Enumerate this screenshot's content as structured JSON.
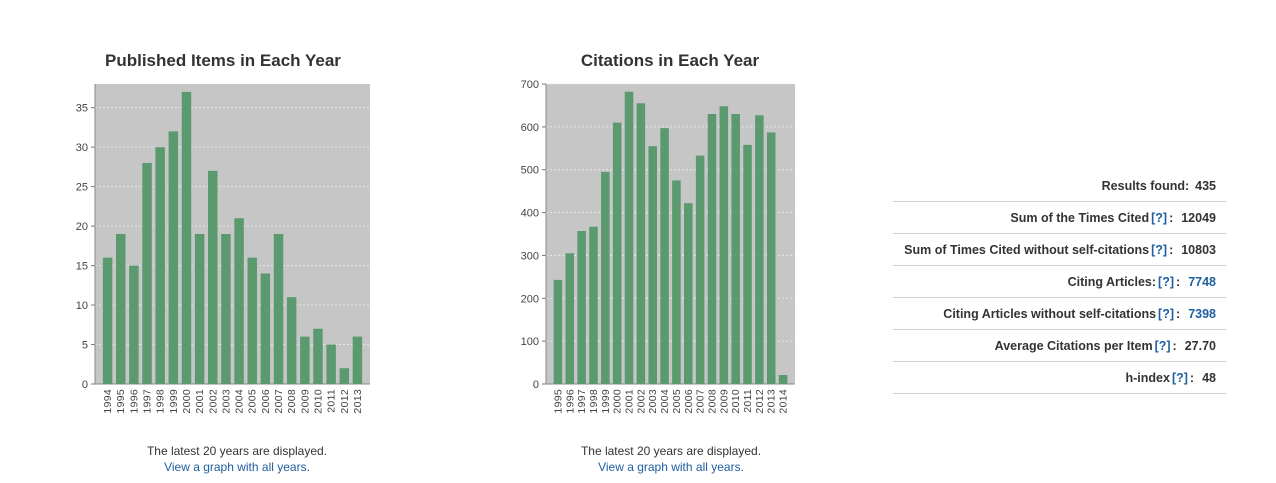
{
  "charts": {
    "published": {
      "title": "Published Items in Each Year",
      "note": "The latest 20 years are displayed.",
      "link": "View a graph with all years."
    },
    "citations": {
      "title": "Citations in Each Year",
      "note": "The latest 20 years are displayed.",
      "link": "View a graph with all years."
    }
  },
  "stats": {
    "results": {
      "label": "Results found:",
      "value": "435"
    },
    "sum_cited": {
      "label": "Sum of the Times Cited",
      "help": "[?]",
      "value": "12049"
    },
    "sum_cited_no_self": {
      "label": "Sum of Times Cited without self-citations",
      "help": "[?]",
      "value": "10803"
    },
    "citing": {
      "label": "Citing Articles:",
      "help": "[?]",
      "value": "7748"
    },
    "citing_no_self": {
      "label": "Citing Articles without self-citations",
      "help": "[?]",
      "value": "7398"
    },
    "avg": {
      "label": "Average Citations per Item",
      "help": "[?]",
      "value": "27.70"
    },
    "hindex": {
      "label": "h-index",
      "help": "[?]",
      "value": "48"
    }
  },
  "colors": {
    "bar": "#5a9a6e",
    "plot_bg": "#c6c6c6",
    "grid": "#e6e6e6",
    "link": "#1f5fa0"
  },
  "chart_data": [
    {
      "type": "bar",
      "title": "Published Items in Each Year",
      "categories": [
        "1994",
        "1995",
        "1996",
        "1997",
        "1998",
        "1999",
        "2000",
        "2001",
        "2002",
        "2003",
        "2004",
        "2005",
        "2006",
        "2007",
        "2008",
        "2009",
        "2010",
        "2011",
        "2012",
        "2013"
      ],
      "values": [
        16,
        19,
        15,
        28,
        30,
        32,
        37,
        19,
        27,
        19,
        21,
        16,
        14,
        19,
        11,
        6,
        7,
        5,
        2,
        6
      ],
      "xlabel": "",
      "ylabel": "",
      "ylim": [
        0,
        38
      ],
      "yticks": [
        0,
        5,
        10,
        15,
        20,
        25,
        30,
        35
      ],
      "grid": true
    },
    {
      "type": "bar",
      "title": "Citations in Each Year",
      "categories": [
        "1995",
        "1996",
        "1997",
        "1998",
        "1999",
        "2000",
        "2001",
        "2002",
        "2003",
        "2004",
        "2005",
        "2006",
        "2007",
        "2008",
        "2009",
        "2010",
        "2011",
        "2012",
        "2013",
        "2014"
      ],
      "values": [
        243,
        305,
        357,
        367,
        495,
        610,
        682,
        655,
        555,
        597,
        475,
        422,
        533,
        630,
        648,
        630,
        558,
        627,
        587,
        21
      ],
      "xlabel": "",
      "ylabel": "",
      "ylim": [
        0,
        700
      ],
      "yticks": [
        0,
        100,
        200,
        300,
        400,
        500,
        600,
        700
      ],
      "grid": true
    }
  ]
}
